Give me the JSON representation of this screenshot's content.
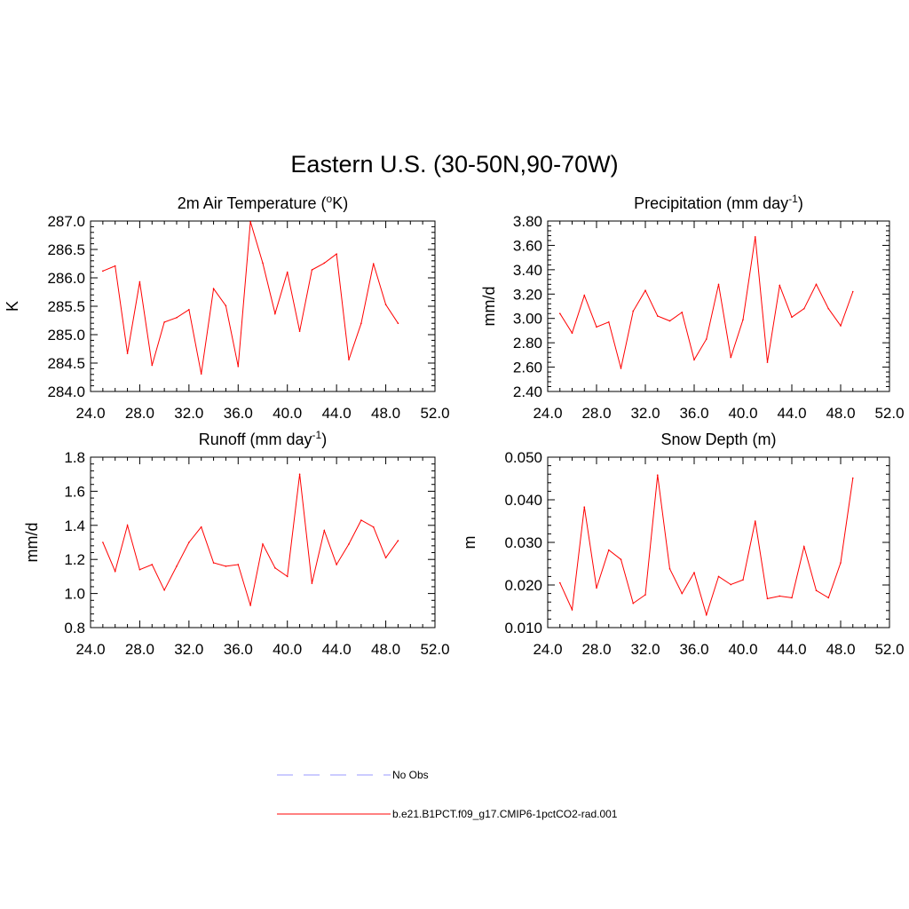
{
  "figure_title": "Eastern U.S. (30-50N,90-70W)",
  "chart_data": [
    {
      "type": "line",
      "title": "2m Air Temperature (",
      "title_sup": "o",
      "title_after": "K)",
      "xlabel": "",
      "ylabel": "K",
      "xlim": [
        24,
        52
      ],
      "ylim": [
        284.0,
        287.0
      ],
      "x_ticks": [
        24,
        28,
        32,
        36,
        40,
        44,
        48,
        52
      ],
      "x_tick_labels": [
        "24.0",
        "28.0",
        "32.0",
        "36.0",
        "40.0",
        "44.0",
        "48.0",
        "52.0"
      ],
      "y_ticks": [
        284.0,
        284.5,
        285.0,
        285.5,
        286.0,
        286.5,
        287.0
      ],
      "y_tick_labels": [
        "284.0",
        "284.5",
        "285.0",
        "285.5",
        "286.0",
        "286.5",
        "287.0"
      ],
      "series": [
        {
          "name": "b.e21.B1PCT.f09_g17.CMIP6-1pctCO2-rad.001",
          "color": "#ff0000",
          "x": [
            25,
            26,
            27,
            28,
            29,
            30,
            31,
            32,
            33,
            34,
            35,
            36,
            37,
            38,
            39,
            40,
            41,
            42,
            43,
            44,
            45,
            46,
            47,
            48,
            49
          ],
          "values": [
            286.12,
            286.21,
            284.67,
            285.93,
            284.46,
            285.22,
            285.3,
            285.44,
            284.31,
            285.81,
            285.51,
            284.44,
            286.99,
            286.26,
            285.37,
            286.1,
            285.06,
            286.14,
            286.26,
            286.42,
            284.56,
            285.2,
            286.25,
            285.53,
            285.2
          ]
        }
      ]
    },
    {
      "type": "line",
      "title": "Precipitation (mm day",
      "title_sup": "-1",
      "title_after": ")",
      "xlabel": "",
      "ylabel": "mm/d",
      "xlim": [
        24,
        52
      ],
      "ylim": [
        2.4,
        3.8
      ],
      "x_ticks": [
        24,
        28,
        32,
        36,
        40,
        44,
        48,
        52
      ],
      "x_tick_labels": [
        "24.0",
        "28.0",
        "32.0",
        "36.0",
        "40.0",
        "44.0",
        "48.0",
        "52.0"
      ],
      "y_ticks": [
        2.4,
        2.6,
        2.8,
        3.0,
        3.2,
        3.4,
        3.6,
        3.8
      ],
      "y_tick_labels": [
        "2.40",
        "2.60",
        "2.80",
        "3.00",
        "3.20",
        "3.40",
        "3.60",
        "3.80"
      ],
      "series": [
        {
          "name": "b.e21.B1PCT.f09_g17.CMIP6-1pctCO2-rad.001",
          "color": "#ff0000",
          "x": [
            25,
            26,
            27,
            28,
            29,
            30,
            31,
            32,
            33,
            34,
            35,
            36,
            37,
            38,
            39,
            40,
            41,
            42,
            43,
            44,
            45,
            46,
            47,
            48,
            49
          ],
          "values": [
            3.04,
            2.88,
            3.19,
            2.93,
            2.97,
            2.59,
            3.06,
            3.23,
            3.02,
            2.98,
            3.05,
            2.66,
            2.83,
            3.28,
            2.68,
            2.99,
            3.67,
            2.64,
            3.27,
            3.01,
            3.08,
            3.28,
            3.08,
            2.94,
            3.22
          ]
        }
      ]
    },
    {
      "type": "line",
      "title": "Runoff (mm day",
      "title_sup": "-1",
      "title_after": ")",
      "xlabel": "",
      "ylabel": "mm/d",
      "xlim": [
        24,
        52
      ],
      "ylim": [
        0.8,
        1.8
      ],
      "x_ticks": [
        24,
        28,
        32,
        36,
        40,
        44,
        48,
        52
      ],
      "x_tick_labels": [
        "24.0",
        "28.0",
        "32.0",
        "36.0",
        "40.0",
        "44.0",
        "48.0",
        "52.0"
      ],
      "y_ticks": [
        0.8,
        1.0,
        1.2,
        1.4,
        1.6,
        1.8
      ],
      "y_tick_labels": [
        "0.8",
        "1.0",
        "1.2",
        "1.4",
        "1.6",
        "1.8"
      ],
      "series": [
        {
          "name": "b.e21.B1PCT.f09_g17.CMIP6-1pctCO2-rad.001",
          "color": "#ff0000",
          "x": [
            25,
            26,
            27,
            28,
            29,
            30,
            31,
            32,
            33,
            34,
            35,
            36,
            37,
            38,
            39,
            40,
            41,
            42,
            43,
            44,
            45,
            46,
            47,
            48,
            49
          ],
          "values": [
            1.3,
            1.13,
            1.4,
            1.14,
            1.17,
            1.02,
            1.16,
            1.3,
            1.39,
            1.18,
            1.16,
            1.17,
            0.93,
            1.29,
            1.15,
            1.1,
            1.7,
            1.06,
            1.37,
            1.17,
            1.29,
            1.43,
            1.39,
            1.21,
            1.31
          ]
        }
      ]
    },
    {
      "type": "line",
      "title": "Snow Depth (m)",
      "title_sup": "",
      "title_after": "",
      "xlabel": "",
      "ylabel": "m",
      "xlim": [
        24,
        52
      ],
      "ylim": [
        0.01,
        0.05
      ],
      "x_ticks": [
        24,
        28,
        32,
        36,
        40,
        44,
        48,
        52
      ],
      "x_tick_labels": [
        "24.0",
        "28.0",
        "32.0",
        "36.0",
        "40.0",
        "44.0",
        "48.0",
        "52.0"
      ],
      "y_ticks": [
        0.01,
        0.02,
        0.03,
        0.04,
        0.05
      ],
      "y_tick_labels": [
        "0.010",
        "0.020",
        "0.030",
        "0.040",
        "0.050"
      ],
      "series": [
        {
          "name": "b.e21.B1PCT.f09_g17.CMIP6-1pctCO2-rad.001",
          "color": "#ff0000",
          "x": [
            25,
            26,
            27,
            28,
            29,
            30,
            31,
            32,
            33,
            34,
            35,
            36,
            37,
            38,
            39,
            40,
            41,
            42,
            43,
            44,
            45,
            46,
            47,
            48,
            49
          ],
          "values": [
            0.0205,
            0.0142,
            0.0383,
            0.0193,
            0.0282,
            0.026,
            0.0157,
            0.0177,
            0.0458,
            0.0238,
            0.018,
            0.0229,
            0.013,
            0.022,
            0.0201,
            0.0212,
            0.035,
            0.0168,
            0.0174,
            0.017,
            0.029,
            0.0187,
            0.017,
            0.0252,
            0.0451
          ]
        }
      ]
    }
  ],
  "legend": [
    {
      "label": "No Obs",
      "color": "#9999ff",
      "dash": true
    },
    {
      "label": "b.e21.B1PCT.f09_g17.CMIP6-1pctCO2-rad.001",
      "color": "#ff0000",
      "dash": false
    }
  ]
}
